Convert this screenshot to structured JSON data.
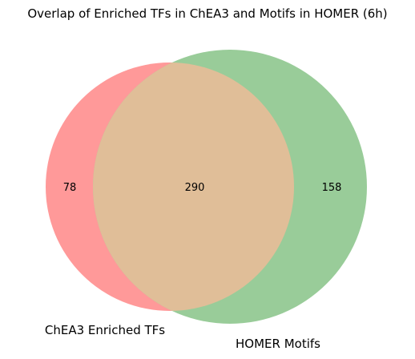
{
  "title": "Overlap of Enriched TFs in ChEA3 and Motifs in HOMER (6h)",
  "sets": {
    "a": {
      "label": "ChEA3 Enriched TFs",
      "color": "#ff9999"
    },
    "b": {
      "label": "HOMER Motifs",
      "color": "#99cc99"
    },
    "overlap_color": "#e0be98"
  },
  "regions": {
    "a_only": "78",
    "both": "290",
    "b_only": "158"
  }
}
